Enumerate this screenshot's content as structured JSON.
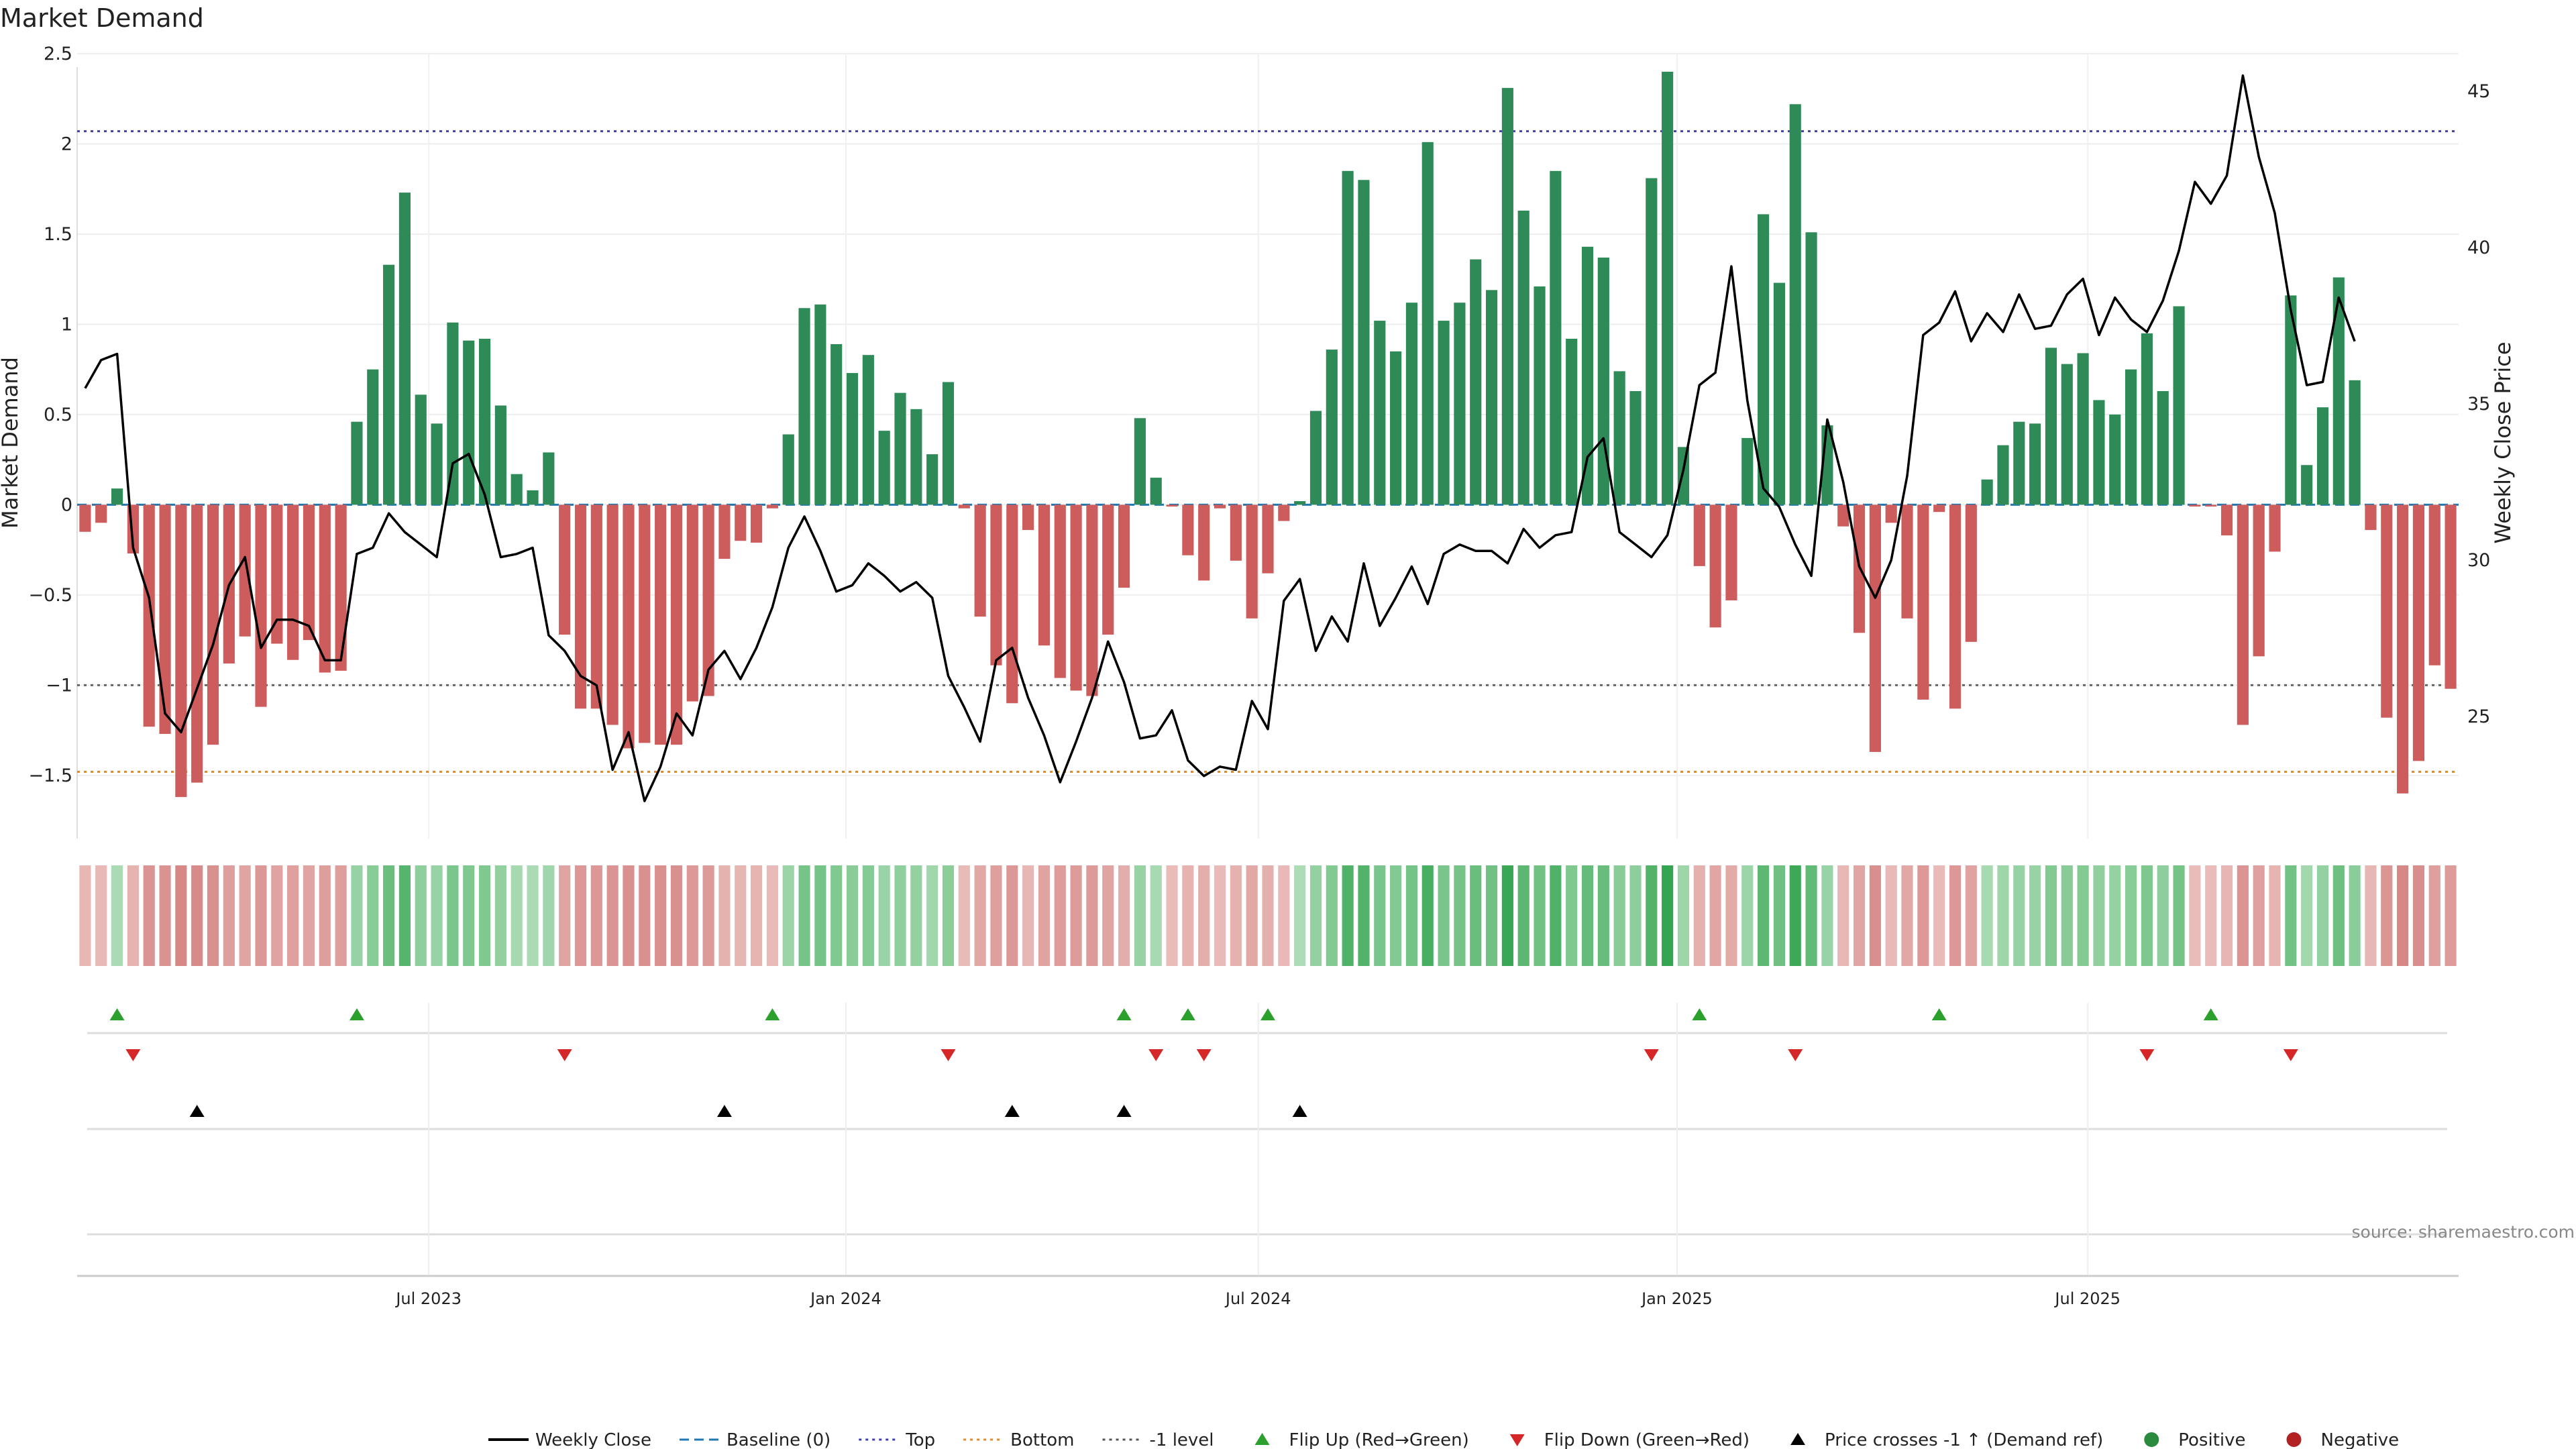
{
  "chart_data": {
    "type": "bar",
    "title": "Market Demand",
    "ylabel": "Market Demand",
    "y2label": "Weekly Close Price",
    "ylim": [
      -1.85,
      2.5
    ],
    "y2lim": [
      21.1,
      46.2
    ],
    "yticks": [
      "2.5",
      "2",
      "1.5",
      "1",
      "0.5",
      "0",
      "−0.5",
      "−1",
      "−1.5"
    ],
    "y2ticks": [
      "45",
      "40",
      "35",
      "30",
      "25"
    ],
    "xticks": [
      {
        "label": "Jul 2023",
        "week": 21.5
      },
      {
        "label": "Jan 2024",
        "week": 47.6
      },
      {
        "label": "Jul 2024",
        "week": 73.4
      },
      {
        "label": "Jan 2025",
        "week": 99.6
      },
      {
        "label": "Jul 2025",
        "week": 125.3
      }
    ],
    "reference_lines": {
      "top": 2.07,
      "bottom": -1.48,
      "minus_one": -1.0,
      "baseline": 0
    },
    "demand": [
      -0.15,
      -0.1,
      0.09,
      -0.27,
      -1.23,
      -1.27,
      -1.62,
      -1.54,
      -1.33,
      -0.88,
      -0.73,
      -1.12,
      -0.77,
      -0.86,
      -0.75,
      -0.93,
      -0.92,
      0.46,
      0.75,
      1.33,
      1.73,
      0.61,
      0.45,
      1.01,
      0.91,
      0.92,
      0.55,
      0.17,
      0.08,
      0.29,
      -0.72,
      -1.13,
      -1.13,
      -1.22,
      -1.35,
      -1.32,
      -1.33,
      -1.33,
      -1.09,
      -1.06,
      -0.3,
      -0.2,
      -0.21,
      -0.02,
      0.39,
      1.09,
      1.11,
      0.89,
      0.73,
      0.83,
      0.41,
      0.62,
      0.53,
      0.28,
      0.68,
      -0.02,
      -0.62,
      -0.89,
      -1.1,
      -0.14,
      -0.78,
      -0.96,
      -1.03,
      -1.06,
      -0.72,
      -0.46,
      0.48,
      0.15,
      -0.01,
      -0.28,
      -0.42,
      -0.02,
      -0.31,
      -0.63,
      -0.38,
      -0.09,
      0.02,
      0.52,
      0.86,
      1.85,
      1.8,
      1.02,
      0.85,
      1.12,
      2.01,
      1.02,
      1.12,
      1.36,
      1.19,
      2.31,
      1.63,
      1.21,
      1.85,
      0.92,
      1.43,
      1.37,
      0.74,
      0.63,
      1.81,
      2.4,
      0.32,
      -0.34,
      -0.68,
      -0.53,
      0.37,
      1.61,
      1.23,
      2.22,
      1.51,
      0.44,
      -0.12,
      -0.71,
      -1.37,
      -0.1,
      -0.63,
      -1.08,
      -0.04,
      -1.13,
      -0.76,
      0.14,
      0.33,
      0.46,
      0.45,
      0.87,
      0.78,
      0.84,
      0.58,
      0.5,
      0.75,
      0.95,
      0.63,
      1.1,
      -0.01,
      -0.01,
      -0.17,
      -1.22,
      -0.84,
      -0.26,
      1.16,
      0.22,
      0.54,
      1.26,
      0.69,
      -0.14,
      -1.18,
      -1.6,
      -1.42,
      -0.89,
      -1.02
    ],
    "close": [
      35.5,
      36.4,
      36.6,
      30.4,
      28.8,
      25.1,
      24.5,
      25.9,
      27.3,
      29.2,
      30.1,
      27.2,
      28.1,
      28.1,
      27.9,
      26.8,
      26.8,
      30.2,
      30.4,
      31.5,
      30.9,
      30.5,
      30.1,
      33.1,
      33.4,
      32.1,
      30.1,
      30.2,
      30.4,
      27.6,
      27.1,
      26.3,
      26.0,
      23.3,
      24.5,
      22.3,
      23.4,
      25.1,
      24.4,
      26.5,
      27.1,
      26.2,
      27.2,
      28.5,
      30.4,
      31.4,
      30.3,
      29.0,
      29.2,
      29.9,
      29.5,
      29.0,
      29.3,
      28.8,
      26.3,
      25.3,
      24.2,
      26.8,
      27.2,
      25.6,
      24.4,
      22.9,
      24.2,
      25.6,
      27.4,
      26.1,
      24.3,
      24.4,
      25.2,
      23.6,
      23.1,
      23.4,
      23.3,
      25.5,
      24.6,
      28.7,
      29.4,
      27.1,
      28.2,
      27.4,
      29.9,
      27.9,
      28.8,
      29.8,
      28.6,
      30.2,
      30.5,
      30.3,
      30.3,
      29.9,
      31.0,
      30.4,
      30.8,
      30.9,
      33.3,
      33.9,
      30.9,
      30.5,
      30.1,
      30.8,
      32.9,
      35.6,
      36.0,
      39.4,
      35.1,
      32.3,
      31.7,
      30.5,
      29.5,
      34.5,
      32.5,
      29.8,
      28.8,
      30.0,
      32.7,
      37.2,
      37.6,
      38.6,
      37.0,
      37.9,
      37.3,
      38.5,
      37.4,
      37.5,
      38.5,
      39.0,
      37.2,
      38.4,
      37.7,
      37.3,
      38.3,
      39.9,
      42.1,
      41.4,
      42.3,
      45.5,
      42.9,
      41.1,
      38.0,
      35.6,
      35.7,
      38.4,
      37.0
    ]
  },
  "events": {
    "flip_up_weeks": [
      2,
      17,
      43,
      65,
      69,
      74,
      101,
      116,
      133
    ],
    "flip_down_weeks": [
      3,
      30,
      54,
      67,
      70,
      98,
      107,
      129,
      138
    ],
    "price_cross_weeks": [
      7,
      40,
      58,
      65,
      76
    ]
  },
  "source_text": "source: sharemaestro.com",
  "legend": [
    {
      "label": "Weekly Close",
      "kind": "line",
      "color": "#000000"
    },
    {
      "label": "Baseline (0)",
      "kind": "dash",
      "color": "#1f77b4"
    },
    {
      "label": "Top",
      "kind": "dot",
      "color": "#3c3cb4"
    },
    {
      "label": "Bottom",
      "kind": "dot",
      "color": "#e08a2a"
    },
    {
      "label": "-1 level",
      "kind": "dot",
      "color": "#555555"
    },
    {
      "label": "Flip Up (Red→Green)",
      "kind": "tri-up",
      "color": "#2ca02c"
    },
    {
      "label": "Flip Down (Green→Red)",
      "kind": "tri-down",
      "color": "#d62728"
    },
    {
      "label": "Price crosses -1 ↑ (Demand ref)",
      "kind": "tri-up",
      "color": "#000000"
    },
    {
      "label": "Positive",
      "kind": "dot-marker",
      "color": "#2a8a3e"
    },
    {
      "label": "Negative",
      "kind": "dot-marker",
      "color": "#b22222"
    }
  ],
  "colors": {
    "positive": "#2e8b57",
    "negative": "#cd5c5c",
    "line": "#000000"
  }
}
